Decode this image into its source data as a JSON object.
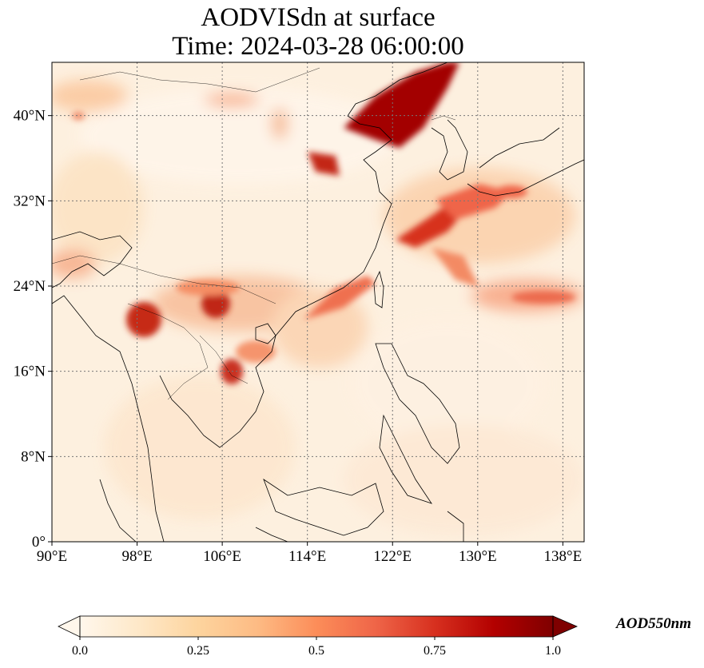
{
  "title": {
    "line1": "AODVISdn at surface",
    "line2": "Time: 2024-03-28 06:00:00"
  },
  "map": {
    "projection": "PlateCarree",
    "lon_range": [
      90,
      140
    ],
    "lat_range": [
      0,
      45
    ],
    "gridlines": true,
    "coastlines": true,
    "borders": true,
    "colormap": "OrRd",
    "lon_ticks": [
      {
        "value": 90,
        "label": "90°E"
      },
      {
        "value": 98,
        "label": "98°E"
      },
      {
        "value": 106,
        "label": "106°E"
      },
      {
        "value": 114,
        "label": "114°E"
      },
      {
        "value": 122,
        "label": "122°E"
      },
      {
        "value": 130,
        "label": "130°E"
      },
      {
        "value": 138,
        "label": "138°E"
      }
    ],
    "lat_ticks": [
      {
        "value": 0,
        "label": "0°"
      },
      {
        "value": 8,
        "label": "8°N"
      },
      {
        "value": 16,
        "label": "16°N"
      },
      {
        "value": 24,
        "label": "24°N"
      },
      {
        "value": 32,
        "label": "32°N"
      },
      {
        "value": 40,
        "label": "40°N"
      }
    ]
  },
  "colorbar": {
    "label": "AOD550nm",
    "min": 0.0,
    "max": 1.0,
    "extend": "both",
    "ticks": [
      {
        "value": 0.0,
        "label": "0.0"
      },
      {
        "value": 0.25,
        "label": "0.25"
      },
      {
        "value": 0.5,
        "label": "0.5"
      },
      {
        "value": 0.75,
        "label": "0.75"
      },
      {
        "value": 1.0,
        "label": "1.0"
      }
    ],
    "colors": [
      "#fff7ec",
      "#fee8c8",
      "#fdd49e",
      "#fdbb84",
      "#fc8d59",
      "#ef6548",
      "#d7301f",
      "#b30000",
      "#7f0000"
    ]
  }
}
